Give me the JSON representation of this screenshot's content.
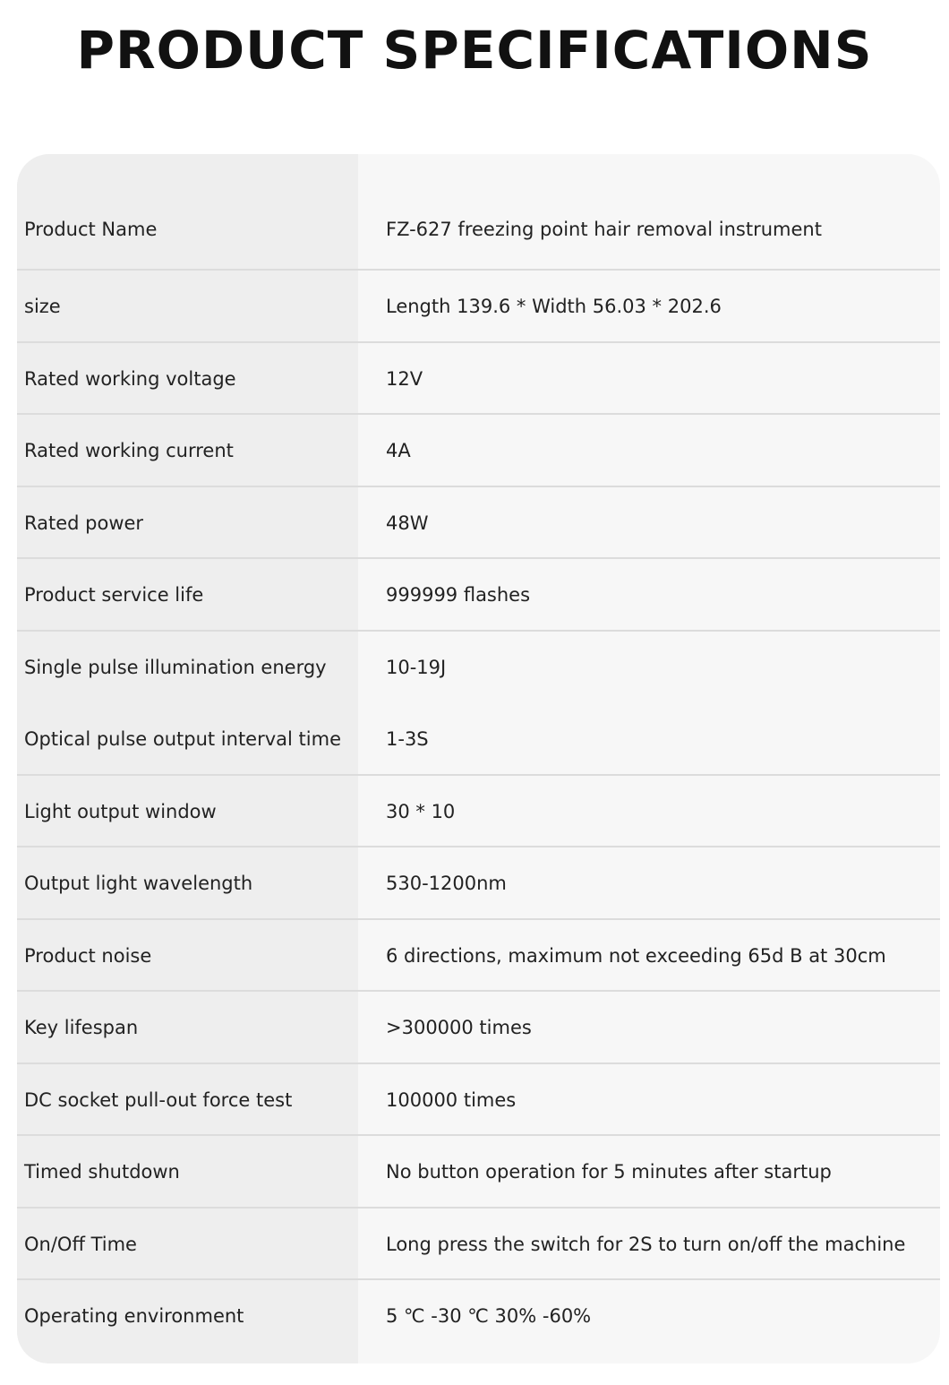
{
  "title": "PRODUCT SPECIFICATIONS",
  "colors": {
    "label_column_bg": "#eeeeee",
    "value_column_bg": "#f7f7f7",
    "divider": "#dcdcdc"
  },
  "specs": [
    {
      "label": "Product Name",
      "value": "FZ-627 freezing point hair removal instrument",
      "divider": true
    },
    {
      "label": "size",
      "value": "Length 139.6 * Width 56.03 * 202.6",
      "divider": true
    },
    {
      "label": "Rated working voltage",
      "value": "12V",
      "divider": true
    },
    {
      "label": "Rated working current",
      "value": "4A",
      "divider": true
    },
    {
      "label": "Rated power",
      "value": "48W",
      "divider": true
    },
    {
      "label": "Product service life",
      "value": "999999 flashes",
      "divider": true
    },
    {
      "label": "Single pulse illumination energy",
      "value": "10-19J",
      "divider": false
    },
    {
      "label": "Optical pulse output interval time",
      "value": "1-3S",
      "divider": true
    },
    {
      "label": "Light output window",
      "value": "30 * 10",
      "divider": true
    },
    {
      "label": "Output light wavelength",
      "value": "530-1200nm",
      "divider": true
    },
    {
      "label": "Product noise",
      "value": "6 directions, maximum not exceeding 65d B at 30cm",
      "divider": true
    },
    {
      "label": "Key lifespan",
      "value": ">300000 times",
      "divider": true
    },
    {
      "label": "DC socket pull-out force test",
      "value": "100000 times",
      "divider": true
    },
    {
      "label": "Timed shutdown",
      "value": "No button operation for 5 minutes after startup",
      "divider": true
    },
    {
      "label": "On/Off Time",
      "value": "Long press the switch for 2S to turn on/off the machine",
      "divider": true
    },
    {
      "label": "Operating environment",
      "value": "5 ℃ -30 ℃ 30% -60%",
      "divider": false
    }
  ]
}
